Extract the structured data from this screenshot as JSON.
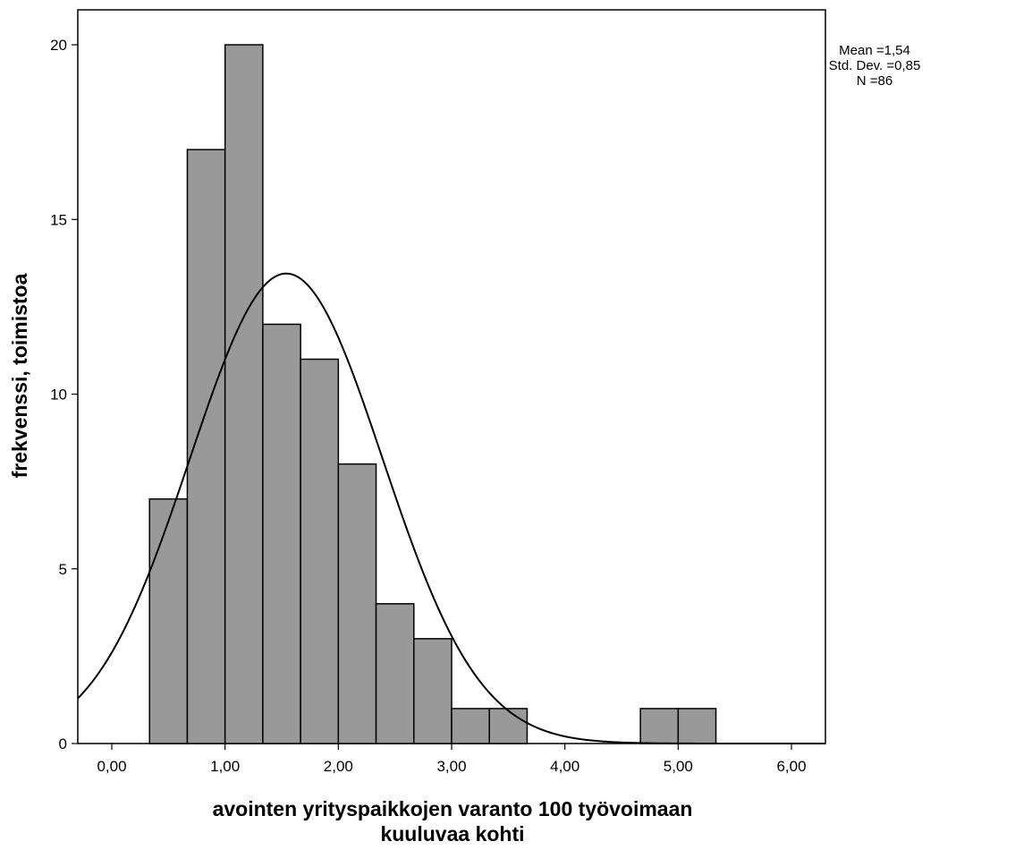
{
  "chart_data": {
    "type": "bar",
    "subtype": "histogram",
    "xlabel_line1": "avointen yrityspaikkojen varanto 100 työvoimaan",
    "xlabel_line2": "kuuluvaa kohti",
    "ylabel": "frekvenssi, toimistoa",
    "xlim": [
      -0.3,
      6.3
    ],
    "ylim": [
      0,
      21
    ],
    "x_ticks": [
      0,
      1,
      2,
      3,
      4,
      5,
      6
    ],
    "x_tick_labels": [
      "0,00",
      "1,00",
      "2,00",
      "3,00",
      "4,00",
      "5,00",
      "6,00"
    ],
    "y_ticks": [
      0,
      5,
      10,
      15,
      20
    ],
    "y_tick_labels": [
      "0",
      "5",
      "10",
      "15",
      "20"
    ],
    "bins": [
      {
        "x0": 0.3333,
        "x1": 0.6667,
        "count": 7
      },
      {
        "x0": 0.6667,
        "x1": 1.0,
        "count": 17
      },
      {
        "x0": 1.0,
        "x1": 1.3333,
        "count": 20
      },
      {
        "x0": 1.3333,
        "x1": 1.6667,
        "count": 12
      },
      {
        "x0": 1.6667,
        "x1": 2.0,
        "count": 11
      },
      {
        "x0": 2.0,
        "x1": 2.3333,
        "count": 8
      },
      {
        "x0": 2.3333,
        "x1": 2.6667,
        "count": 4
      },
      {
        "x0": 2.6667,
        "x1": 3.0,
        "count": 3
      },
      {
        "x0": 3.0,
        "x1": 3.3333,
        "count": 1
      },
      {
        "x0": 3.3333,
        "x1": 3.6667,
        "count": 1
      },
      {
        "x0": 4.6667,
        "x1": 5.0,
        "count": 1
      },
      {
        "x0": 5.0,
        "x1": 5.3333,
        "count": 1
      }
    ],
    "normal_curve": {
      "mean": 1.54,
      "std": 0.85,
      "n": 86,
      "bin_width": 0.3333
    },
    "grid": false,
    "bar_color": "#999999",
    "curve_color": "#000000"
  },
  "stats": {
    "mean": "Mean =1,54",
    "std": "Std. Dev. =0,85",
    "n": "N =86"
  }
}
